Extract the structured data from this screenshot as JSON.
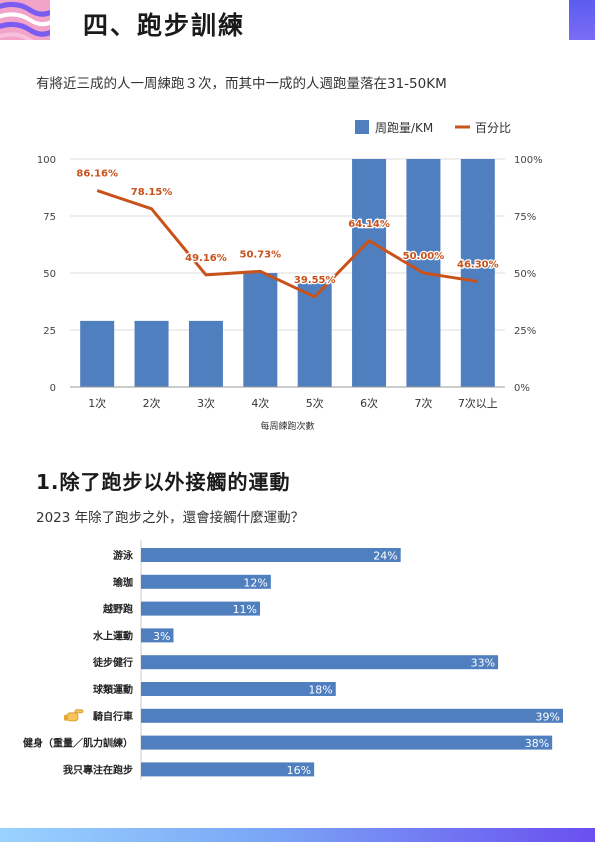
{
  "header": {
    "title": "四、跑步訓練"
  },
  "intro_text": "有將近三成的人一周練跑３次，而其中一成的人週跑量落在31-50KM",
  "colors": {
    "bar": "#4f7fbf",
    "line": "#c9521a",
    "grid": "#dddddd",
    "axis": "#999999"
  },
  "subsection": {
    "title": "1.除了跑步以外接觸的運動",
    "question": "2023 年除了跑步之外，還會接觸什麼運動？"
  },
  "chart_data": [
    {
      "type": "bar",
      "categories": [
        "1次",
        "2次",
        "3次",
        "4次",
        "5次",
        "6次",
        "7次",
        "7次以上"
      ],
      "series": [
        {
          "name": "周跑量/KM",
          "type": "bar",
          "axis": "left",
          "values": [
            29,
            29,
            29,
            50,
            46,
            100,
            100,
            100
          ]
        },
        {
          "name": "百分比",
          "type": "line",
          "axis": "right",
          "values": [
            86.16,
            78.15,
            49.16,
            50.73,
            39.55,
            64.14,
            50.0,
            46.3
          ],
          "labels": [
            "86.16%",
            "78.15%",
            "49.16%",
            "50.73%",
            "39.55%",
            "64.14%",
            "50.00%",
            "46.30%"
          ]
        }
      ],
      "xlabel": "每周練跑次數",
      "ylim": [
        0,
        100
      ],
      "y_ticks": [
        "0",
        "25",
        "50",
        "75",
        "100"
      ],
      "y2lim": [
        0,
        100
      ],
      "y2_ticks": [
        "0%",
        "25%",
        "50%",
        "75%",
        "100%"
      ],
      "grid": true,
      "legend": "top-right"
    },
    {
      "type": "bar",
      "orientation": "horizontal",
      "categories": [
        "游泳",
        "瑜珈",
        "越野跑",
        "水上運動",
        "徒步健行",
        "球類運動",
        "騎自行車",
        "健身（重量／肌力訓練）",
        "我只專注在跑步"
      ],
      "values": [
        24,
        12,
        11,
        3,
        33,
        18,
        39,
        38,
        16
      ],
      "value_labels": [
        "24%",
        "12%",
        "11%",
        "3%",
        "33%",
        "18%",
        "39%",
        "38%",
        "16%"
      ],
      "highlight_index": 6,
      "highlight_icon": "pointing-hand-icon"
    }
  ]
}
